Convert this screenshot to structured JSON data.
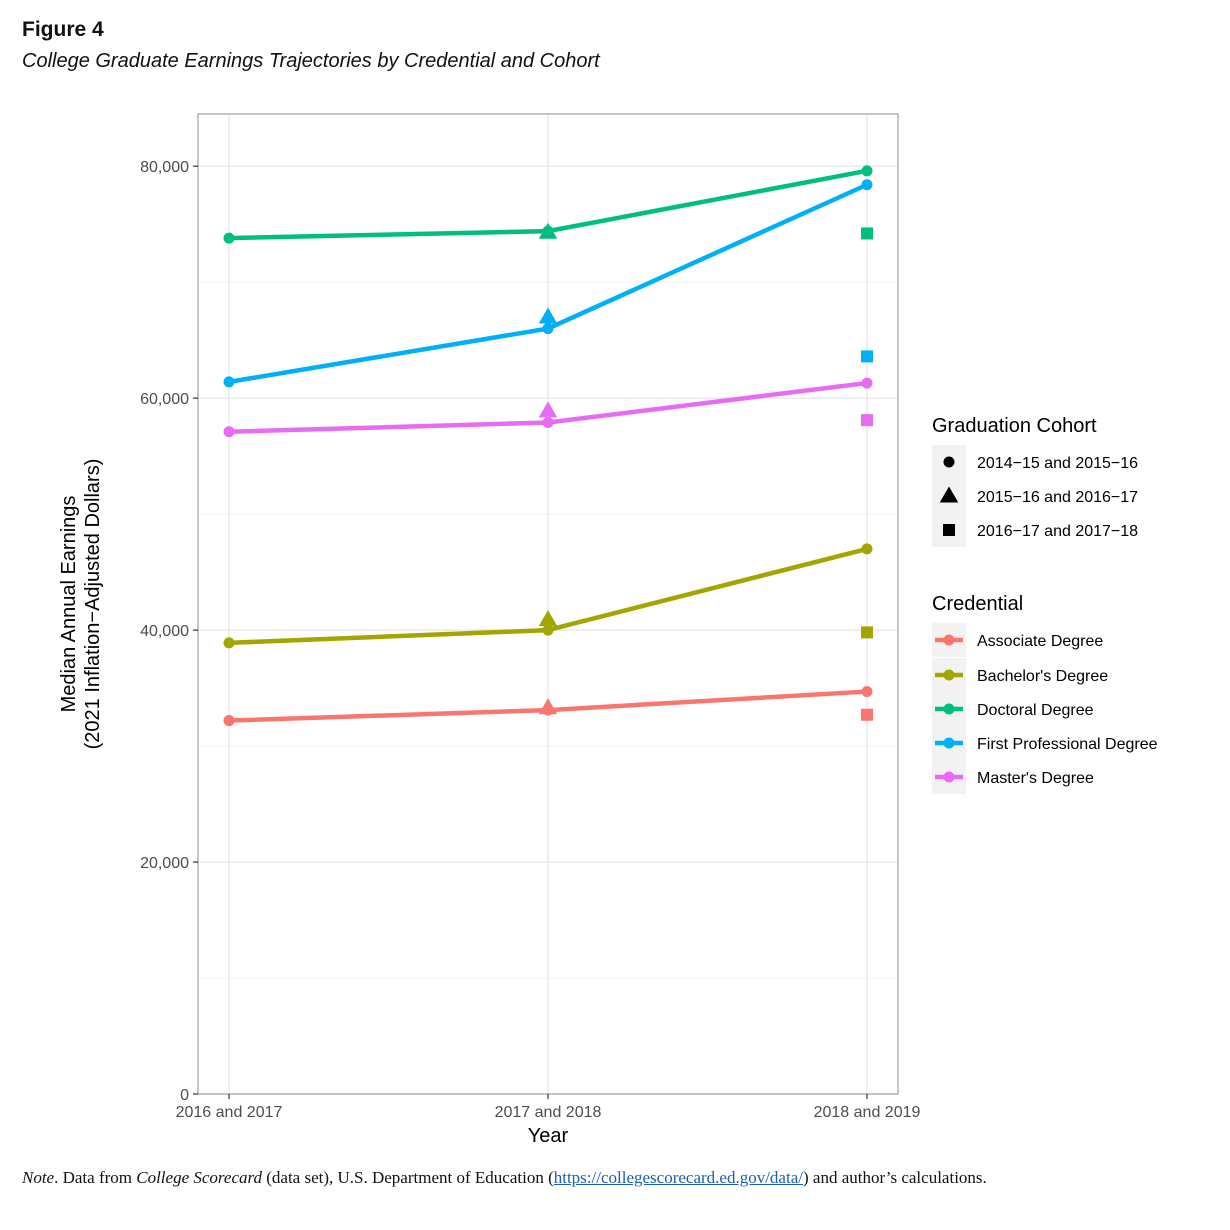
{
  "figure": {
    "label": "Figure 4",
    "title": "College Graduate Earnings Trajectories by Credential and Cohort"
  },
  "note": {
    "note_word": "Note",
    "after_note": ". Data from ",
    "source_name": "College Scorecard",
    "after_source": " (data set), U.S. Department of Education (",
    "link": "https://collegescorecard.ed.gov/data/",
    "after_link": ") and author’s calculations."
  },
  "chart_data": {
    "type": "line",
    "xlabel": "Year",
    "ylabel_line1": "Median Annual Earnings",
    "ylabel_line2": "(2021 Inflation−Adjusted Dollars)",
    "categories": [
      "2016 and 2017",
      "2017 and 2018",
      "2018 and 2019"
    ],
    "ylim": [
      0,
      84500
    ],
    "yticks": [
      0,
      20000,
      40000,
      60000,
      80000
    ],
    "ytick_labels": [
      "0",
      "20,000",
      "40,000",
      "60,000",
      "80,000"
    ],
    "grid": true,
    "legend_placement": "right",
    "cohort_legend_title": "Graduation Cohort",
    "cohorts": [
      {
        "label": "2014−15 and 2015−16",
        "shape": "circle"
      },
      {
        "label": "2015−16 and 2016−17",
        "shape": "triangle"
      },
      {
        "label": "2016−17 and 2017−18",
        "shape": "square"
      }
    ],
    "credential_legend_title": "Credential",
    "series": [
      {
        "name": "Associate Degree",
        "color": "#F8766D",
        "values": [
          32200,
          33100,
          34700
        ],
        "triangle": [
          null,
          33300,
          null
        ],
        "square": [
          null,
          null,
          32700
        ]
      },
      {
        "name": "Bachelor's Degree",
        "color": "#A3A500",
        "values": [
          38900,
          40000,
          47000
        ],
        "triangle": [
          null,
          40900,
          null
        ],
        "square": [
          null,
          null,
          39800
        ]
      },
      {
        "name": "Doctoral Degree",
        "color": "#00BF7D",
        "values": [
          73800,
          74400,
          79600
        ],
        "triangle": [
          null,
          74300,
          null
        ],
        "square": [
          null,
          null,
          74200
        ]
      },
      {
        "name": "First Professional Degree",
        "color": "#00B0F6",
        "values": [
          61400,
          66000,
          78400
        ],
        "triangle": [
          null,
          67000,
          null
        ],
        "square": [
          null,
          null,
          63600
        ]
      },
      {
        "name": "Master's Degree",
        "color": "#E76BF3",
        "values": [
          57100,
          57900,
          61300
        ],
        "triangle": [
          null,
          58900,
          null
        ],
        "square": [
          null,
          null,
          58100
        ]
      }
    ]
  }
}
